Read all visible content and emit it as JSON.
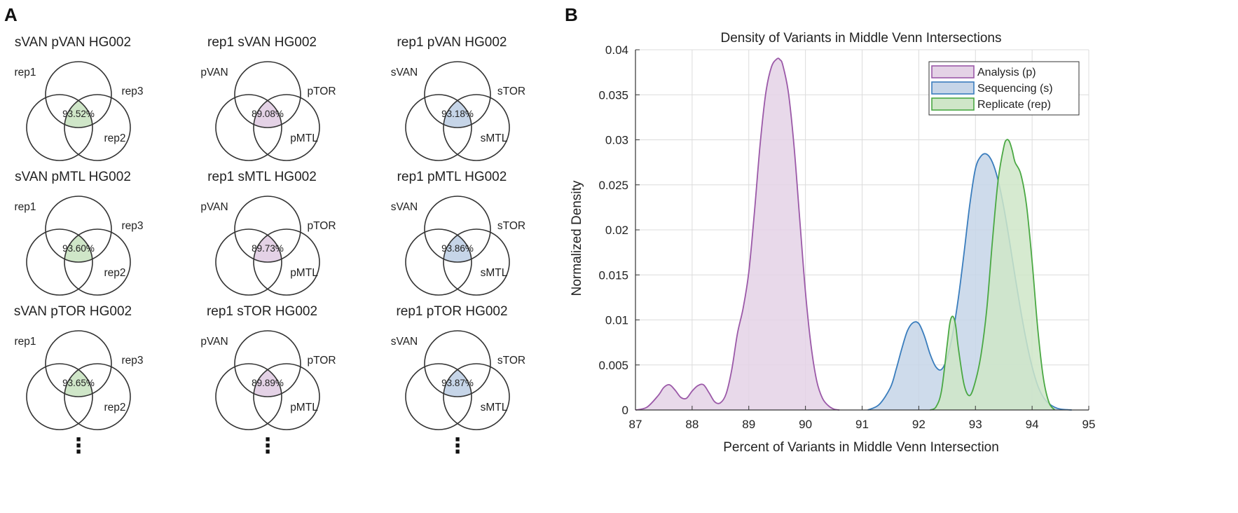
{
  "panel_a": {
    "label": "A",
    "more_symbol": "⋮",
    "fill_colors": {
      "replicate": "#cfe6c8",
      "analysis": "#e4d2e6",
      "sequencing": "#c6d5e8"
    },
    "columns": [
      {
        "fill": "replicate",
        "labels": [
          "rep1",
          "rep3",
          "rep2"
        ],
        "venns": [
          {
            "title": "sVAN pVAN HG002",
            "percent": "93.52%"
          },
          {
            "title": "sVAN pMTL HG002",
            "percent": "93.60%"
          },
          {
            "title": "sVAN pTOR HG002",
            "percent": "93.65%"
          }
        ]
      },
      {
        "fill": "analysis",
        "labels": [
          "pVAN",
          "pTOR",
          "pMTL"
        ],
        "venns": [
          {
            "title": "rep1 sVAN HG002",
            "percent": "89.08%"
          },
          {
            "title": "rep1 sMTL HG002",
            "percent": "89.73%"
          },
          {
            "title": "rep1 sTOR HG002",
            "percent": "89.89%"
          }
        ]
      },
      {
        "fill": "sequencing",
        "labels": [
          "sVAN",
          "sTOR",
          "sMTL"
        ],
        "venns": [
          {
            "title": "rep1 pVAN HG002",
            "percent": "93.18%"
          },
          {
            "title": "rep1 pMTL HG002",
            "percent": "93.86%"
          },
          {
            "title": "rep1 pTOR HG002",
            "percent": "93.87%"
          }
        ]
      }
    ]
  },
  "chart_data": {
    "type": "area",
    "panel_label": "B",
    "title": "Density of Variants in Middle Venn Intersections",
    "xlabel": "Percent of Variants in Middle Venn Intersection",
    "ylabel": "Normalized Density",
    "xlim": [
      87,
      95
    ],
    "ylim": [
      0,
      0.04
    ],
    "xticks": [
      87,
      88,
      89,
      90,
      91,
      92,
      93,
      94,
      95
    ],
    "xtick_labels": [
      "87",
      "88",
      "89",
      "90",
      "91",
      "92",
      "93",
      "94",
      "95"
    ],
    "yticks": [
      0,
      0.005,
      0.01,
      0.015,
      0.02,
      0.025,
      0.03,
      0.035,
      0.04
    ],
    "ytick_labels": [
      "0",
      "0.005",
      "0.01",
      "0.015",
      "0.02",
      "0.025",
      "0.03",
      "0.035",
      "0.04"
    ],
    "grid": true,
    "legend_position": "top-right",
    "series": [
      {
        "name": "Analysis (p)",
        "line_color": "#9b59a8",
        "fill_color": "#e4d2e6",
        "x": [
          87.0,
          87.2,
          87.4,
          87.5,
          87.6,
          87.7,
          87.8,
          87.9,
          88.0,
          88.1,
          88.2,
          88.3,
          88.4,
          88.5,
          88.6,
          88.7,
          88.8,
          88.9,
          89.0,
          89.1,
          89.2,
          89.3,
          89.4,
          89.5,
          89.55,
          89.6,
          89.7,
          89.8,
          89.9,
          90.0,
          90.1,
          90.2,
          90.3,
          90.4,
          90.5,
          90.6
        ],
        "y": [
          0.0,
          0.0003,
          0.0016,
          0.0025,
          0.0028,
          0.0022,
          0.0014,
          0.0013,
          0.0021,
          0.0027,
          0.0028,
          0.0019,
          0.0009,
          0.0008,
          0.0018,
          0.0045,
          0.0085,
          0.0113,
          0.0153,
          0.022,
          0.0295,
          0.0352,
          0.0381,
          0.039,
          0.0389,
          0.0383,
          0.0352,
          0.0292,
          0.0211,
          0.0131,
          0.0071,
          0.0032,
          0.0013,
          0.0005,
          0.0001,
          0.0
        ]
      },
      {
        "name": "Sequencing (s)",
        "line_color": "#3a7dbd",
        "fill_color": "#c6d5e8",
        "x": [
          91.1,
          91.3,
          91.5,
          91.6,
          91.7,
          91.8,
          91.9,
          92.0,
          92.1,
          92.2,
          92.3,
          92.4,
          92.5,
          92.6,
          92.7,
          92.8,
          92.9,
          93.0,
          93.1,
          93.2,
          93.3,
          93.4,
          93.5,
          93.6,
          93.7,
          93.8,
          93.9,
          94.0,
          94.1,
          94.2,
          94.3,
          94.4,
          94.5,
          94.7
        ],
        "y": [
          0.0,
          0.0006,
          0.0025,
          0.0045,
          0.0068,
          0.0088,
          0.0097,
          0.0096,
          0.0082,
          0.0062,
          0.0048,
          0.0045,
          0.0058,
          0.0085,
          0.0125,
          0.0175,
          0.0228,
          0.0268,
          0.0282,
          0.0284,
          0.0275,
          0.0255,
          0.0225,
          0.0188,
          0.0148,
          0.011,
          0.0076,
          0.0048,
          0.0027,
          0.0014,
          0.0007,
          0.0003,
          0.0001,
          0.0
        ]
      },
      {
        "name": "Replicate (rep)",
        "line_color": "#4aa843",
        "fill_color": "#cfe6c8",
        "x": [
          92.2,
          92.3,
          92.4,
          92.5,
          92.55,
          92.6,
          92.65,
          92.7,
          92.8,
          92.9,
          93.0,
          93.1,
          93.2,
          93.3,
          93.4,
          93.5,
          93.55,
          93.6,
          93.65,
          93.7,
          93.8,
          93.9,
          94.0,
          94.1,
          94.2,
          94.3,
          94.4
        ],
        "y": [
          0.0,
          0.0003,
          0.0021,
          0.0072,
          0.0097,
          0.0104,
          0.0094,
          0.0068,
          0.0028,
          0.0016,
          0.0032,
          0.0062,
          0.0112,
          0.0188,
          0.0255,
          0.0292,
          0.03,
          0.0298,
          0.0288,
          0.0275,
          0.0262,
          0.0228,
          0.0165,
          0.009,
          0.0035,
          0.0008,
          0.0
        ]
      }
    ]
  }
}
